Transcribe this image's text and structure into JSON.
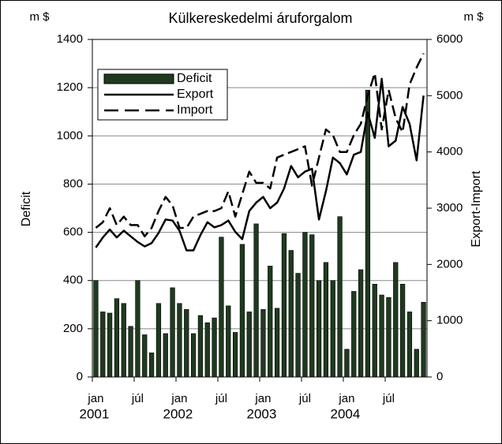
{
  "chart_data": {
    "type": "combo",
    "title": "Külkereskedelmi áruforgalom",
    "y_unit": "m $",
    "y2_unit": "m $",
    "ylabel": "Deficit",
    "y2label": "Export-Import",
    "categories": [
      "jan",
      null,
      null,
      null,
      null,
      null,
      "júl",
      null,
      null,
      null,
      null,
      null,
      "jan",
      null,
      null,
      null,
      null,
      null,
      "júl",
      null,
      null,
      null,
      null,
      null,
      "jan",
      null,
      null,
      null,
      null,
      null,
      "júl",
      null,
      null,
      null,
      null,
      null,
      "jan",
      null,
      null,
      null,
      null,
      null,
      "júl",
      null,
      null,
      null,
      null,
      null
    ],
    "years": [
      "2001",
      "2002",
      "2003",
      "2004"
    ],
    "ylim": [
      0,
      1400
    ],
    "yticks": [
      0,
      200,
      400,
      600,
      800,
      1000,
      1200,
      1400
    ],
    "y2lim": [
      0,
      6000
    ],
    "y2ticks": [
      0,
      1000,
      2000,
      3000,
      4000,
      5000,
      6000
    ],
    "grid": true,
    "legend": "upper left",
    "series": [
      {
        "name": "Deficit",
        "type": "bar",
        "axis": "y",
        "color": "#1f3a1f",
        "values": [
          400,
          270,
          265,
          325,
          305,
          210,
          400,
          175,
          100,
          305,
          180,
          370,
          305,
          280,
          180,
          255,
          225,
          245,
          580,
          295,
          185,
          550,
          270,
          635,
          280,
          460,
          285,
          595,
          525,
          430,
          600,
          590,
          400,
          475,
          400,
          665,
          115,
          355,
          445,
          1190,
          385,
          340,
          330,
          475,
          385,
          270,
          115,
          310
        ]
      },
      {
        "name": "Export",
        "type": "line",
        "axis": "y2",
        "color": "#000000",
        "line_style": "solid",
        "values": [
          2300,
          2480,
          2620,
          2480,
          2600,
          2500,
          2400,
          2320,
          2380,
          2560,
          2800,
          2780,
          2600,
          2250,
          2250,
          2520,
          2750,
          2660,
          2700,
          2780,
          2580,
          2450,
          2950,
          3100,
          3200,
          3000,
          3100,
          3350,
          3750,
          3550,
          3650,
          3700,
          2800,
          3300,
          3900,
          3800,
          3600,
          3950,
          4000,
          4700,
          4250,
          5300,
          4100,
          4200,
          4800,
          4500,
          3850,
          5000
        ]
      },
      {
        "name": "Import",
        "type": "line",
        "axis": "y2",
        "color": "#000000",
        "line_style": "dashed",
        "values": [
          2650,
          2750,
          3000,
          2700,
          2850,
          2700,
          2700,
          2500,
          2650,
          2950,
          3200,
          3050,
          2650,
          2650,
          2850,
          2900,
          2950,
          2950,
          3000,
          3300,
          2850,
          3250,
          3650,
          3450,
          3450,
          3350,
          3900,
          3950,
          4000,
          4050,
          4100,
          3400,
          3900,
          4400,
          4300,
          4000,
          4000,
          4300,
          4500,
          5000,
          5400,
          4400,
          5100,
          4600,
          4350,
          5200,
          5500,
          5750
        ]
      }
    ]
  }
}
